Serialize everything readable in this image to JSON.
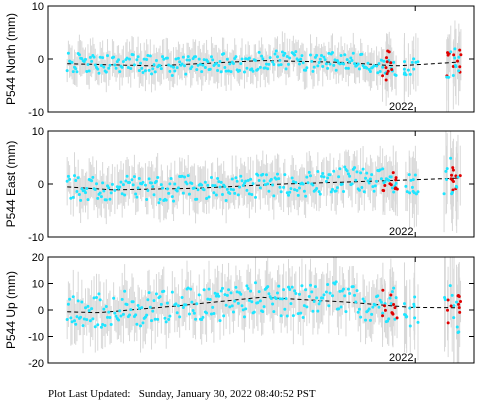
{
  "footer": {
    "label": "Plot Last Updated:",
    "timestamp": "Sunday, January 30, 2022 08:40:52 PST"
  },
  "colors": {
    "normal": "#1fe5ff",
    "recent": "#e00000",
    "errorbar": "#d8d8d8",
    "trend": "#000000"
  },
  "chart_data": [
    {
      "type": "scatter",
      "component": "north",
      "ylabel": "P544 North (mm)",
      "ylim": [
        -10,
        10
      ],
      "yticks": [
        -10,
        0,
        10
      ],
      "xtick_label": "2022",
      "trend": [
        [
          0.0,
          -0.8
        ],
        [
          0.25,
          -1.3
        ],
        [
          0.5,
          -0.3
        ],
        [
          0.68,
          -0.6
        ],
        [
          0.82,
          -1.3
        ],
        [
          1.0,
          -0.4
        ]
      ],
      "series": [
        {
          "color_key": "normal",
          "amplitude": 1.8,
          "count": 270
        },
        {
          "color_key": "recent",
          "amplitude": 2.8,
          "count": 22
        }
      ],
      "error_half_height": 3.0
    },
    {
      "type": "scatter",
      "component": "east",
      "ylabel": "P544 East (mm)",
      "ylim": [
        -10,
        10
      ],
      "yticks": [
        -10,
        0,
        10
      ],
      "xtick_label": "2022",
      "trend": [
        [
          0.0,
          -0.3
        ],
        [
          0.15,
          -1.1
        ],
        [
          0.35,
          -0.8
        ],
        [
          0.55,
          0.0
        ],
        [
          0.75,
          0.5
        ],
        [
          1.0,
          1.2
        ]
      ],
      "series": [
        {
          "color_key": "normal",
          "amplitude": 2.4,
          "count": 270
        },
        {
          "color_key": "recent",
          "amplitude": 2.5,
          "count": 22
        }
      ],
      "error_half_height": 3.6
    },
    {
      "type": "scatter",
      "component": "up",
      "ylabel": "P544 Up (mm)",
      "ylim": [
        -20,
        20
      ],
      "yticks": [
        -20,
        -10,
        0,
        10,
        20
      ],
      "xtick_label": "2022",
      "trend": [
        [
          0.0,
          -0.5
        ],
        [
          0.12,
          -1.0
        ],
        [
          0.3,
          1.5
        ],
        [
          0.5,
          4.8
        ],
        [
          0.7,
          3.0
        ],
        [
          0.85,
          1.0
        ],
        [
          1.0,
          0.8
        ]
      ],
      "series": [
        {
          "color_key": "normal",
          "amplitude": 6.5,
          "count": 270
        },
        {
          "color_key": "recent",
          "amplitude": 6.0,
          "count": 22
        }
      ],
      "error_half_height": 8.5
    }
  ]
}
